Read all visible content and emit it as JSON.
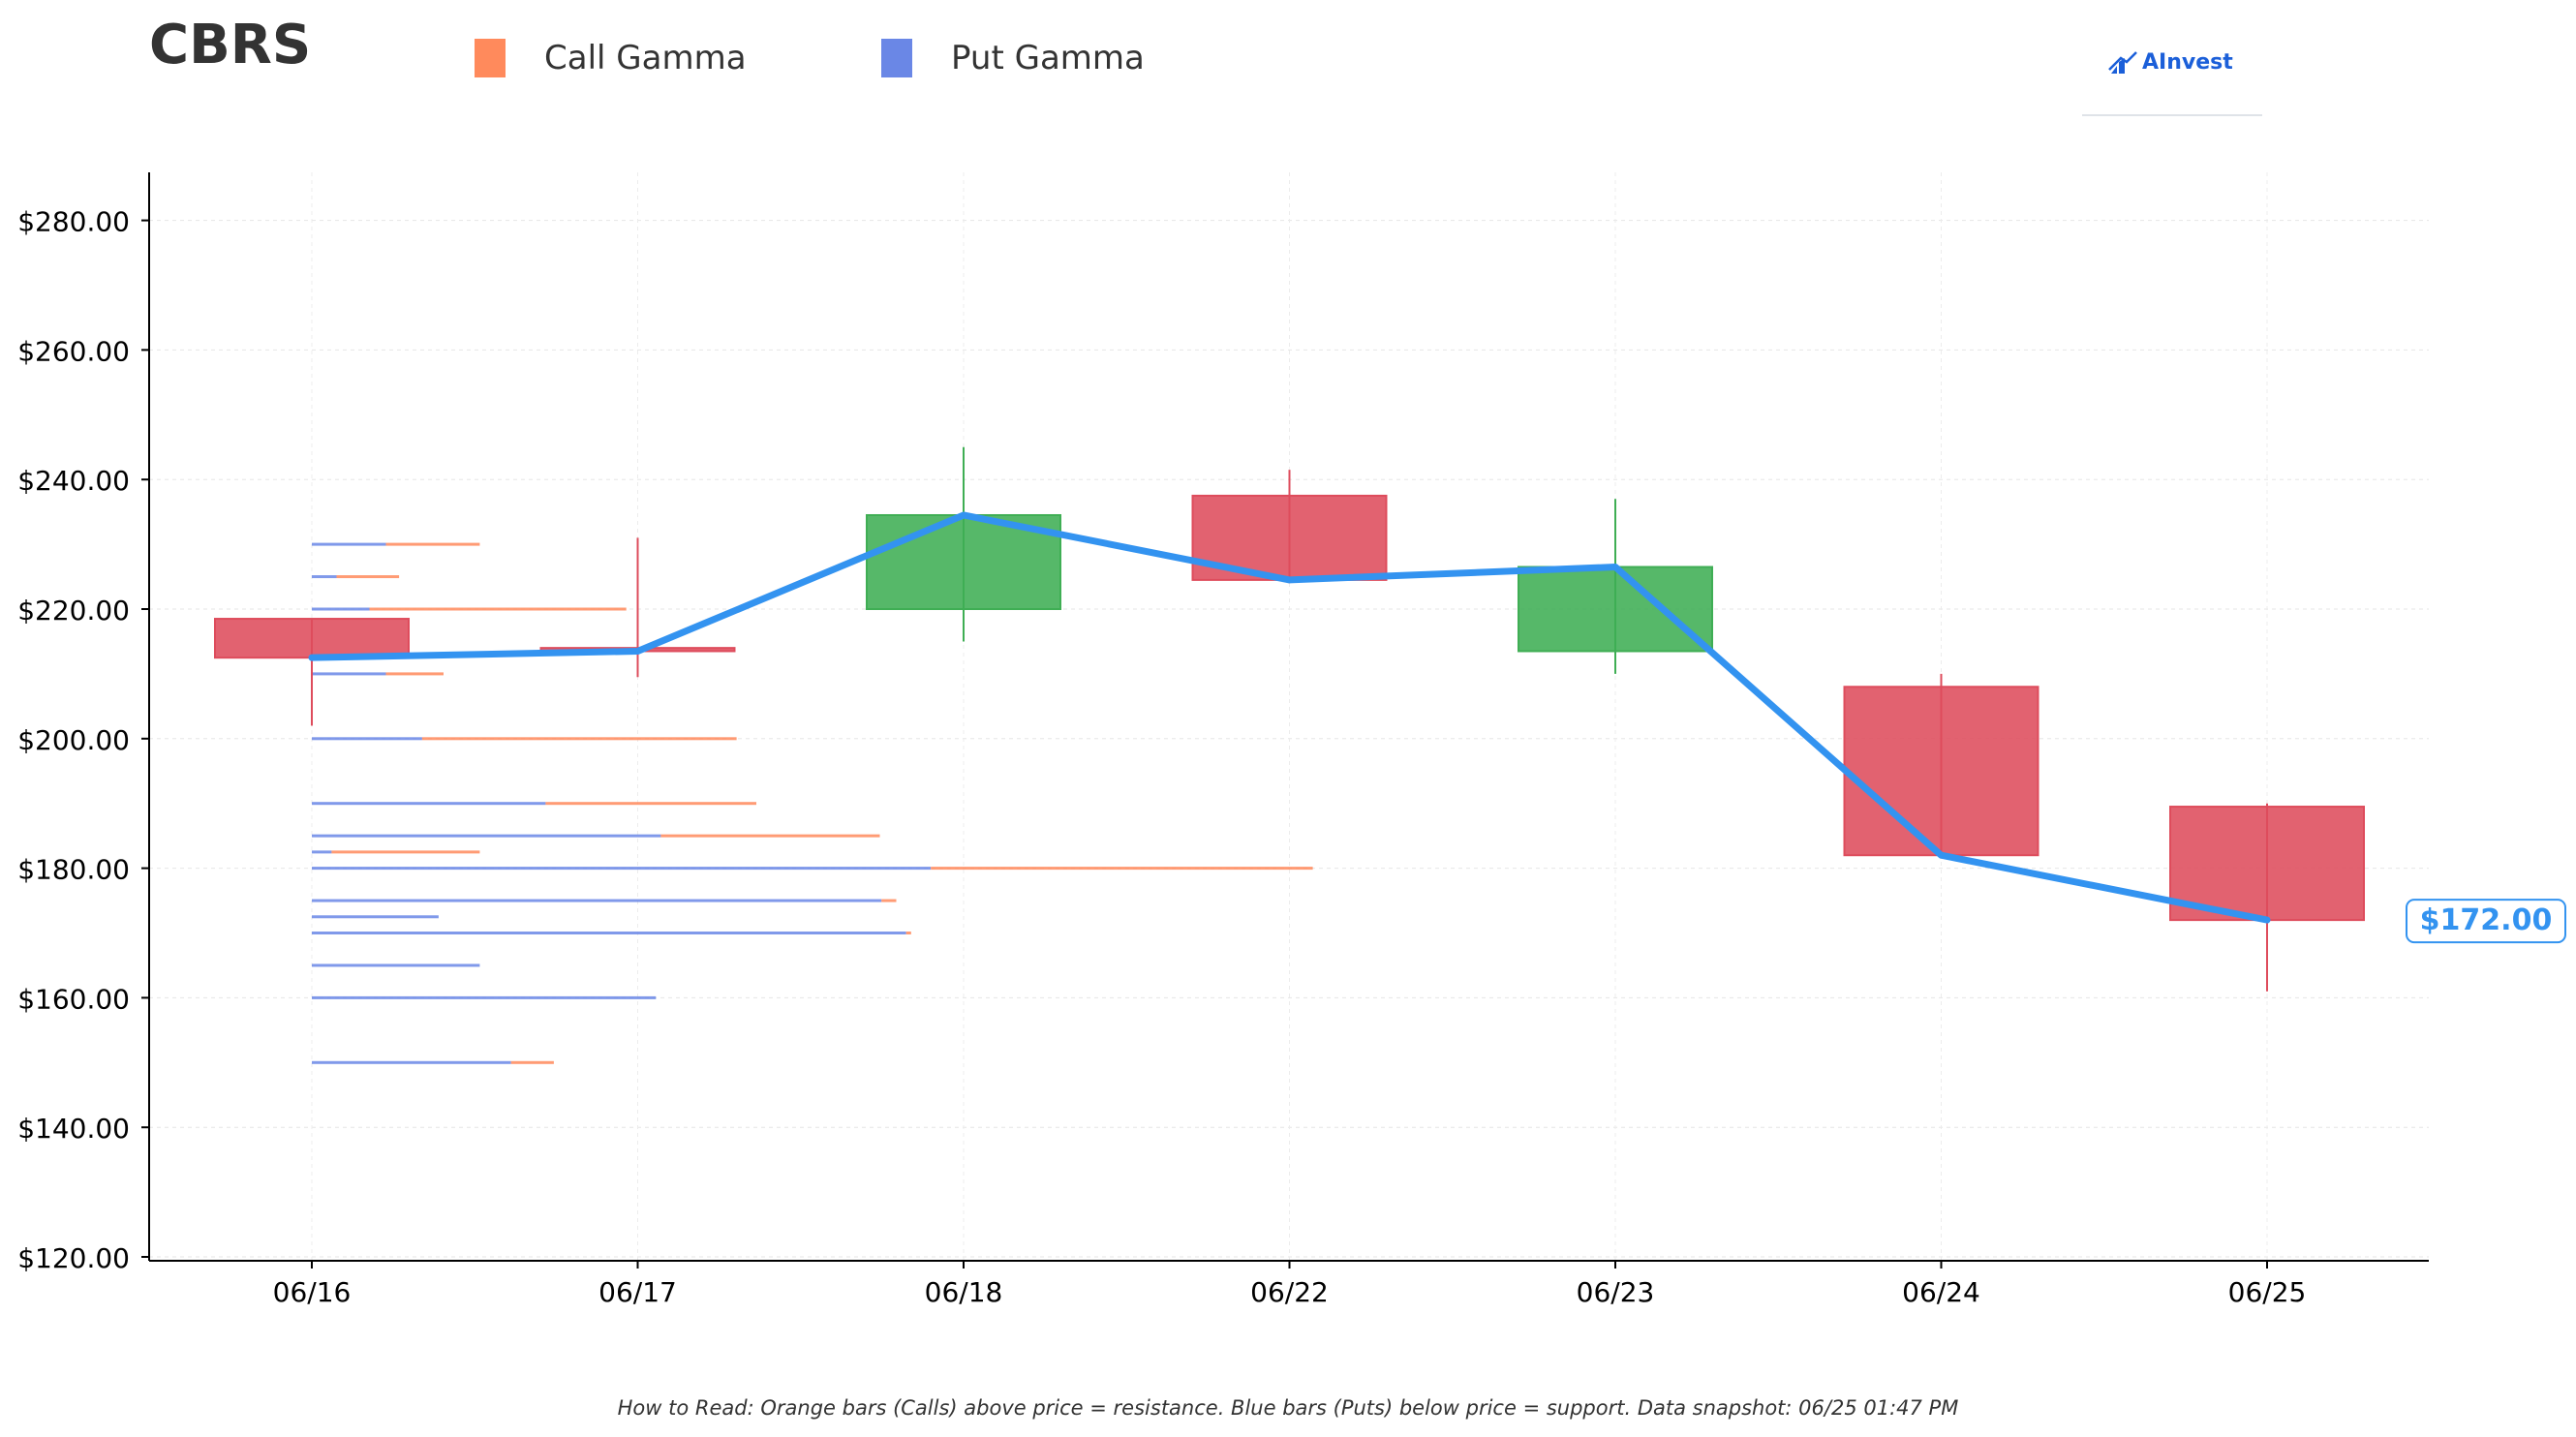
{
  "header": {
    "ticker": "CBRS",
    "logo_text": "AInvest"
  },
  "legend": [
    {
      "label": "Call Gamma",
      "color": "#ff8a5c"
    },
    {
      "label": "Put Gamma",
      "color": "#6a87e6"
    }
  ],
  "footnote": "How to Read: Orange bars (Calls) above price = resistance. Blue bars (Puts) below price = support. Data snapshot: 06/25 01:47 PM",
  "colors": {
    "up": "#3fae54",
    "down": "#de4c5c",
    "price_line": "#3393f0",
    "call": "#ff8a5c",
    "put": "#6a87e6"
  },
  "chart_data": {
    "type": "candlestick",
    "title": "CBRS",
    "ylim": [
      120,
      287
    ],
    "yticks": [
      120,
      140,
      160,
      180,
      200,
      220,
      240,
      260,
      280
    ],
    "ytick_labels": [
      "$120.00",
      "$140.00",
      "$160.00",
      "$180.00",
      "$200.00",
      "$220.00",
      "$240.00",
      "$260.00",
      "$280.00"
    ],
    "categories": [
      "06/16",
      "06/17",
      "06/18",
      "06/22",
      "06/23",
      "06/24",
      "06/25"
    ],
    "candles": [
      {
        "date": "06/16",
        "open": 218.5,
        "high": 218.5,
        "low": 202,
        "close": 212.5
      },
      {
        "date": "06/17",
        "open": 214,
        "high": 231,
        "low": 209.5,
        "close": 213.5
      },
      {
        "date": "06/18",
        "open": 220,
        "high": 245,
        "low": 215,
        "close": 234.5
      },
      {
        "date": "06/22",
        "open": 237.5,
        "high": 241.5,
        "low": 224,
        "close": 224.5
      },
      {
        "date": "06/23",
        "open": 213.5,
        "high": 237,
        "low": 210,
        "close": 226.5
      },
      {
        "date": "06/24",
        "open": 208,
        "high": 210,
        "low": 181.5,
        "close": 182
      },
      {
        "date": "06/25",
        "open": 189.5,
        "high": 190,
        "low": 161,
        "close": 172
      }
    ],
    "price_line": [
      212.5,
      213.5,
      234.5,
      224.5,
      226.5,
      182,
      172
    ],
    "current_price": 172,
    "current_price_label": "$172.00",
    "gamma_levels": [
      {
        "strike": 230,
        "put": 0.45,
        "call": 0.57
      },
      {
        "strike": 225,
        "put": 0.15,
        "call": 0.38
      },
      {
        "strike": 220,
        "put": 0.35,
        "call": 1.56
      },
      {
        "strike": 210,
        "put": 0.45,
        "call": 0.35
      },
      {
        "strike": 200,
        "put": 0.67,
        "call": 1.91
      },
      {
        "strike": 190,
        "put": 1.42,
        "call": 1.28
      },
      {
        "strike": 185,
        "put": 2.12,
        "call": 1.33
      },
      {
        "strike": 182.5,
        "put": 0.12,
        "call": 0.9
      },
      {
        "strike": 180,
        "put": 3.76,
        "call": 2.32
      },
      {
        "strike": 175,
        "put": 3.46,
        "call": 0.09
      },
      {
        "strike": 172.5,
        "put": 0.77,
        "call": 0
      },
      {
        "strike": 170,
        "put": 3.61,
        "call": 0.03
      },
      {
        "strike": 165,
        "put": 1.02,
        "call": 0
      },
      {
        "strike": 160,
        "put": 2.09,
        "call": 0
      },
      {
        "strike": 150,
        "put": 1.21,
        "call": 0.26
      }
    ],
    "grid": true,
    "legend_position": "top-left"
  }
}
